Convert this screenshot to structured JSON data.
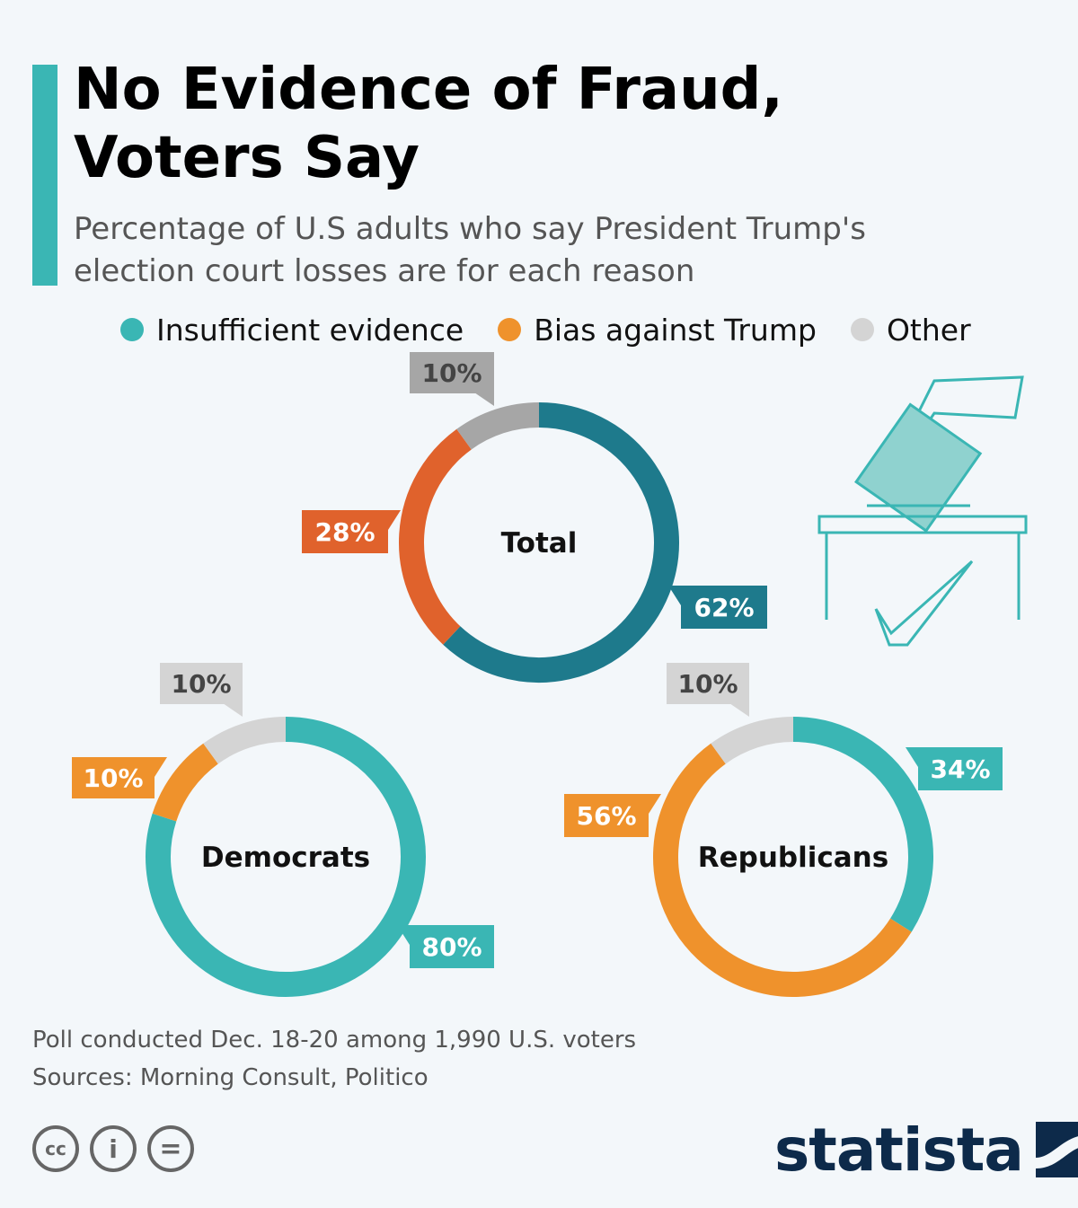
{
  "header": {
    "title": "No Evidence of Fraud,\nVoters Say",
    "subtitle": "Percentage of U.S adults who say President Trump's\nelection court losses are for each reason"
  },
  "colors": {
    "accent": "#3ab6b4",
    "insufficient_total": "#1e7a8c",
    "bias_total": "#e0622c",
    "other_total": "#a6a6a6",
    "insufficient": "#3ab6b4",
    "bias": "#ef922c",
    "other": "#d4d4d4"
  },
  "chart_data": {
    "type": "pie",
    "legend": {
      "placement": "top",
      "entries": [
        "Insufficient evidence",
        "Bias against Trump",
        "Other"
      ]
    },
    "donuts": [
      {
        "label": "Total",
        "segments": [
          {
            "category": "Insufficient evidence",
            "value": 62,
            "label": "62%"
          },
          {
            "category": "Bias against Trump",
            "value": 28,
            "label": "28%"
          },
          {
            "category": "Other",
            "value": 10,
            "label": "10%"
          }
        ]
      },
      {
        "label": "Democrats",
        "segments": [
          {
            "category": "Insufficient evidence",
            "value": 80,
            "label": "80%"
          },
          {
            "category": "Bias against Trump",
            "value": 10,
            "label": "10%"
          },
          {
            "category": "Other",
            "value": 10,
            "label": "10%"
          }
        ]
      },
      {
        "label": "Republicans",
        "segments": [
          {
            "category": "Insufficient evidence",
            "value": 34,
            "label": "34%"
          },
          {
            "category": "Bias against Trump",
            "value": 56,
            "label": "56%"
          },
          {
            "category": "Other",
            "value": 10,
            "label": "10%"
          }
        ]
      }
    ]
  },
  "footer": {
    "note": "Poll conducted Dec. 18-20 among 1,990 U.S. voters",
    "sources": "Sources: Morning Consult, Politico"
  },
  "license_icons": [
    "cc-icon",
    "by-icon",
    "nd-icon"
  ],
  "license_text": {
    "cc": "cc",
    "by": "i",
    "nd": "="
  },
  "brand": {
    "name": "statista"
  }
}
